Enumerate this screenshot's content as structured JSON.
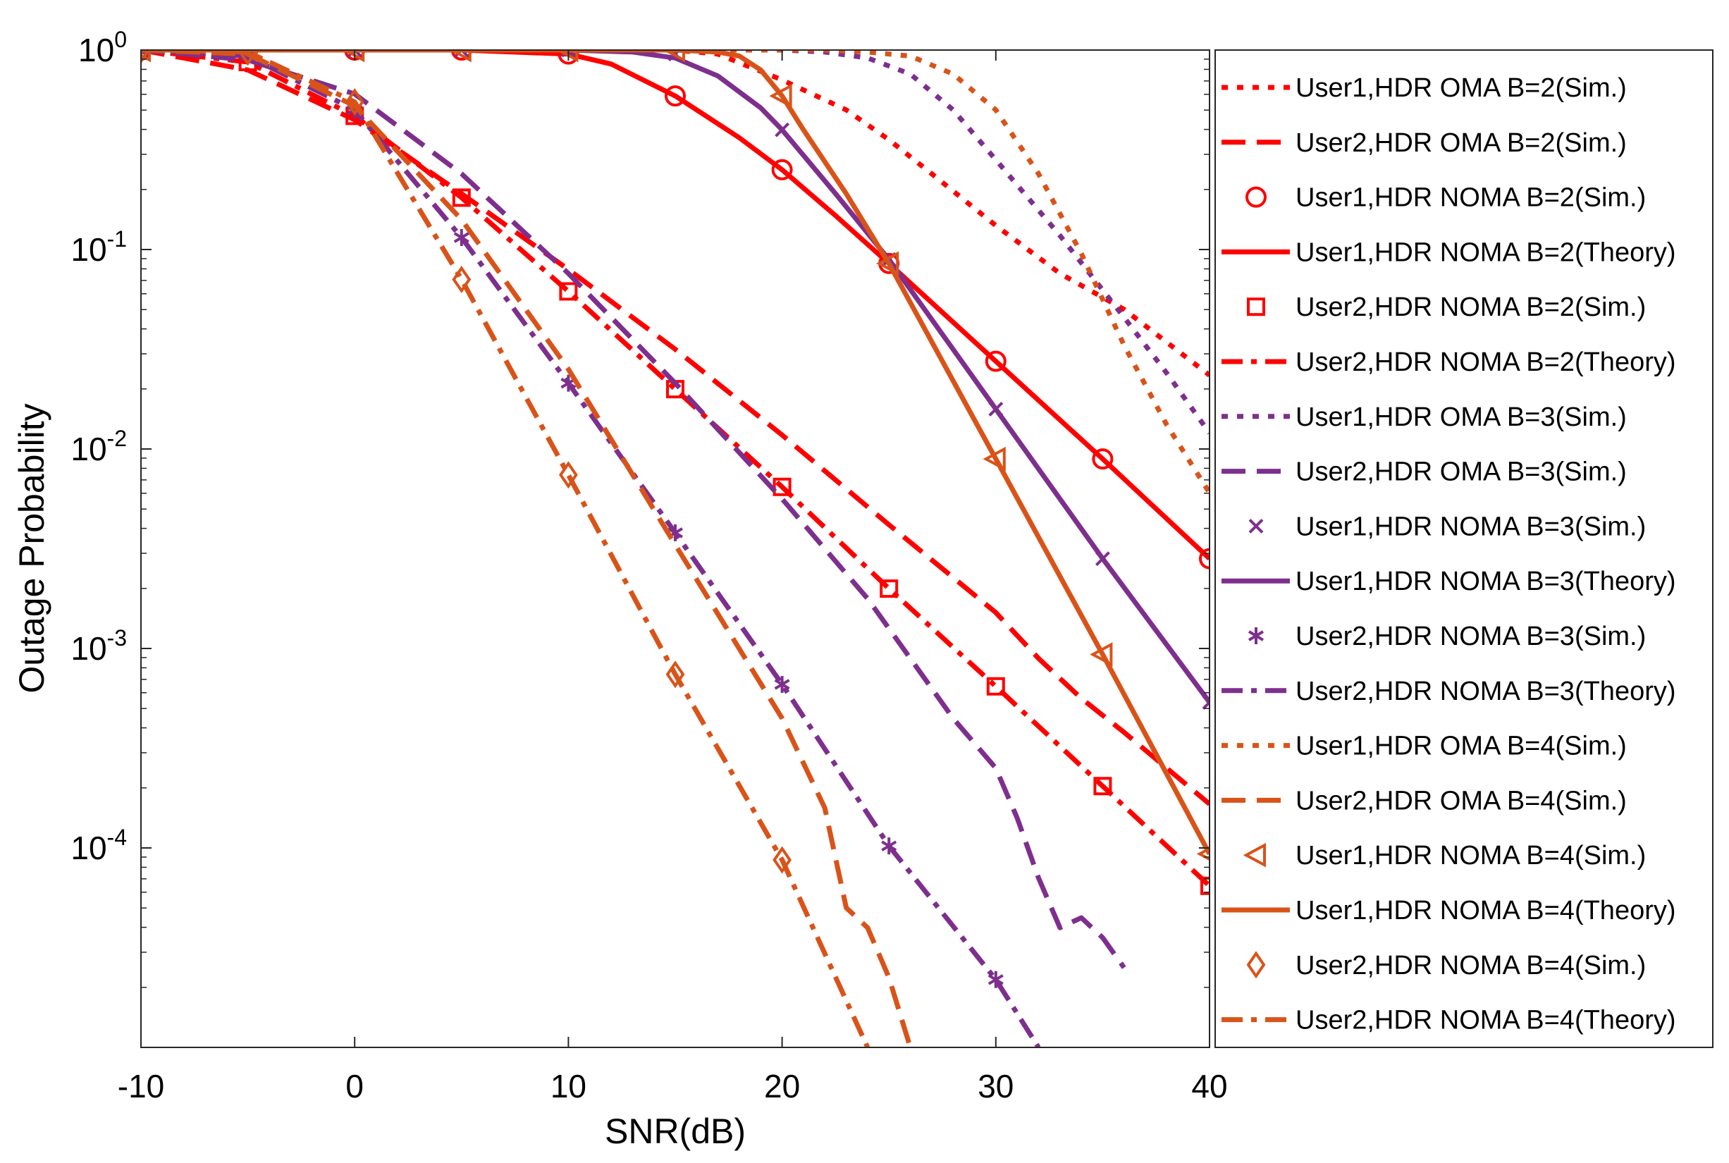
{
  "chart_data": {
    "type": "line",
    "title": "",
    "xlabel": "SNR(dB)",
    "ylabel": "Outage Probability",
    "xlim": [
      -10,
      40
    ],
    "ylim_log10": [
      -5,
      0
    ],
    "xscale": "linear",
    "yscale": "log",
    "grid": false,
    "legend_position": "outside-right",
    "x_ticks": [
      {
        "value": -10,
        "label": "-10"
      },
      {
        "value": 0,
        "label": "0"
      },
      {
        "value": 10,
        "label": "10"
      },
      {
        "value": 20,
        "label": "20"
      },
      {
        "value": 30,
        "label": "30"
      },
      {
        "value": 40,
        "label": "40"
      }
    ],
    "y_ticks": [
      {
        "exp": 0,
        "base": "10",
        "sup": "0"
      },
      {
        "exp": -1,
        "base": "10",
        "sup": "-1"
      },
      {
        "exp": -2,
        "base": "10",
        "sup": "-2"
      },
      {
        "exp": -3,
        "base": "10",
        "sup": "-3"
      },
      {
        "exp": -4,
        "base": "10",
        "sup": "-4"
      }
    ],
    "colors": {
      "B2": "#ff0000",
      "B3": "#7e2f8e",
      "B4": "#d95319"
    },
    "series": [
      {
        "name": "User1,HDR OMA B=2(Sim.)",
        "color": "#ff0000",
        "line": "dotted",
        "marker": "none",
        "x": [
          -10,
          15,
          17,
          20,
          23,
          25,
          27,
          30,
          33,
          36,
          40
        ],
        "logy": [
          0,
          0,
          -0.02,
          -0.15,
          -0.3,
          -0.45,
          -0.62,
          -0.88,
          -1.12,
          -1.3,
          -1.63
        ]
      },
      {
        "name": "User2,HDR OMA B=2(Sim.)",
        "color": "#ff0000",
        "line": "dashed",
        "marker": "none",
        "x": [
          -10,
          -5,
          0,
          5,
          10,
          15,
          20,
          25,
          30,
          32,
          34,
          36,
          40
        ],
        "logy": [
          0,
          -0.1,
          -0.35,
          -0.72,
          -1.1,
          -1.5,
          -1.93,
          -2.38,
          -2.82,
          -3.05,
          -3.25,
          -3.42,
          -3.78
        ]
      },
      {
        "name": "User1,HDR NOMA B=2(Sim.)",
        "color": "#ff0000",
        "line": "none",
        "marker": "circle",
        "x": [
          -10,
          -5,
          0,
          5,
          10,
          15,
          20,
          25,
          30,
          35,
          40
        ],
        "logy": [
          0,
          0,
          0,
          0,
          -0.02,
          -0.23,
          -0.6,
          -1.07,
          -1.56,
          -2.05,
          -2.55
        ]
      },
      {
        "name": "User1,HDR NOMA B=2(Theory)",
        "color": "#ff0000",
        "line": "solid",
        "marker": "none",
        "x": [
          -10,
          5,
          10,
          12,
          15,
          18,
          20,
          22.5,
          25,
          30,
          35,
          40
        ],
        "logy": [
          0,
          0,
          -0.02,
          -0.07,
          -0.23,
          -0.44,
          -0.6,
          -0.83,
          -1.07,
          -1.56,
          -2.05,
          -2.55
        ]
      },
      {
        "name": "User2,HDR NOMA B=2(Sim.)",
        "color": "#ff0000",
        "line": "none",
        "marker": "square",
        "x": [
          -10,
          -5,
          0,
          5,
          10,
          15,
          20,
          25,
          30,
          35,
          40
        ],
        "logy": [
          0,
          -0.06,
          -0.33,
          -0.74,
          -1.21,
          -1.7,
          -2.19,
          -2.7,
          -3.19,
          -3.69,
          -4.19
        ]
      },
      {
        "name": "User2,HDR NOMA B=2(Theory)",
        "color": "#ff0000",
        "line": "dashdot",
        "marker": "none",
        "x": [
          -10,
          -5,
          0,
          5,
          10,
          15,
          20,
          25,
          30,
          35,
          40
        ],
        "logy": [
          0,
          -0.06,
          -0.33,
          -0.74,
          -1.21,
          -1.7,
          -2.19,
          -2.7,
          -3.19,
          -3.69,
          -4.19
        ]
      },
      {
        "name": "User1,HDR OMA B=3(Sim.)",
        "color": "#7e2f8e",
        "line": "dotted",
        "marker": "none",
        "x": [
          -10,
          20,
          22,
          24,
          26,
          28,
          30,
          33,
          36,
          38,
          40
        ],
        "logy": [
          0,
          0,
          -0.01,
          -0.04,
          -0.12,
          -0.3,
          -0.55,
          -0.93,
          -1.34,
          -1.62,
          -1.92
        ]
      },
      {
        "name": "User2,HDR OMA B=3(Sim.)",
        "color": "#7e2f8e",
        "line": "dashed",
        "marker": "none",
        "x": [
          -10,
          -5,
          0,
          5,
          10,
          15,
          20,
          22,
          24,
          25,
          26,
          28,
          30,
          31,
          32,
          33,
          34,
          35,
          36
        ],
        "logy": [
          0,
          -0.05,
          -0.22,
          -0.62,
          -1.12,
          -1.67,
          -2.25,
          -2.5,
          -2.75,
          -2.9,
          -3.05,
          -3.35,
          -3.6,
          -3.85,
          -4.15,
          -4.4,
          -4.35,
          -4.45,
          -4.6
        ]
      },
      {
        "name": "User1,HDR NOMA B=3(Sim.)",
        "color": "#7e2f8e",
        "line": "none",
        "marker": "x",
        "x": [
          -10,
          -5,
          0,
          5,
          10,
          15,
          20,
          25,
          30,
          35,
          40
        ],
        "logy": [
          0,
          0,
          0,
          0,
          0,
          -0.02,
          -0.4,
          -1.05,
          -1.8,
          -2.55,
          -3.27
        ]
      },
      {
        "name": "User1,HDR NOMA B=3(Theory)",
        "color": "#7e2f8e",
        "line": "solid",
        "marker": "none",
        "x": [
          -10,
          10,
          13,
          15,
          17,
          19,
          20,
          22.5,
          25,
          30,
          35,
          40
        ],
        "logy": [
          0,
          0,
          -0.01,
          -0.04,
          -0.13,
          -0.29,
          -0.4,
          -0.72,
          -1.05,
          -1.8,
          -2.55,
          -3.27
        ]
      },
      {
        "name": "User2,HDR NOMA B=3(Sim.)",
        "color": "#7e2f8e",
        "line": "none",
        "marker": "asterisk",
        "x": [
          -10,
          -5,
          0,
          5,
          10,
          15,
          20,
          25,
          30
        ],
        "logy": [
          0,
          -0.03,
          -0.3,
          -0.94,
          -1.67,
          -2.42,
          -3.18,
          -3.99,
          -4.66
        ]
      },
      {
        "name": "User2,HDR NOMA B=3(Theory)",
        "color": "#7e2f8e",
        "line": "dashdot",
        "marker": "none",
        "x": [
          -10,
          -5,
          0,
          5,
          10,
          15,
          20,
          25,
          30,
          32
        ],
        "logy": [
          0,
          -0.03,
          -0.3,
          -0.94,
          -1.67,
          -2.42,
          -3.18,
          -3.99,
          -4.66,
          -5.0
        ]
      },
      {
        "name": "User1,HDR OMA B=4(Sim.)",
        "color": "#d95319",
        "line": "dotted",
        "marker": "none",
        "x": [
          -10,
          22,
          24,
          26,
          28,
          30,
          32,
          34,
          36,
          38,
          40
        ],
        "logy": [
          0,
          0,
          -0.01,
          -0.03,
          -0.12,
          -0.3,
          -0.62,
          -1.02,
          -1.48,
          -1.88,
          -2.22
        ]
      },
      {
        "name": "User2,HDR OMA B=4(Sim.)",
        "color": "#d95319",
        "line": "dashed",
        "marker": "none",
        "x": [
          -10,
          -5,
          0,
          5,
          10,
          15,
          20,
          22,
          23,
          24,
          25,
          26
        ],
        "logy": [
          0,
          -0.02,
          -0.28,
          -0.85,
          -1.6,
          -2.48,
          -3.35,
          -3.8,
          -4.3,
          -4.4,
          -4.65,
          -5.0
        ]
      },
      {
        "name": "User1,HDR NOMA B=4(Sim.)",
        "color": "#d95319",
        "line": "none",
        "marker": "triangle-left",
        "x": [
          -10,
          -5,
          0,
          5,
          10,
          15,
          20,
          25,
          30,
          35,
          40
        ],
        "logy": [
          0,
          0,
          0,
          0,
          0,
          0,
          -0.23,
          -1.07,
          -2.05,
          -3.03,
          -4.03
        ]
      },
      {
        "name": "User1,HDR NOMA B=4(Theory)",
        "color": "#d95319",
        "line": "solid",
        "marker": "none",
        "x": [
          -10,
          15,
          17,
          18,
          19,
          20,
          21,
          23,
          25,
          30,
          35,
          38,
          40
        ],
        "logy": [
          0,
          0,
          -0.01,
          -0.03,
          -0.1,
          -0.23,
          -0.4,
          -0.72,
          -1.07,
          -2.05,
          -3.03,
          -3.63,
          -4.03
        ]
      },
      {
        "name": "User2,HDR NOMA B=4(Sim.)",
        "color": "#d95319",
        "line": "none",
        "marker": "diamond",
        "x": [
          -10,
          -5,
          0,
          5,
          10,
          15,
          20
        ],
        "logy": [
          0,
          -0.01,
          -0.26,
          -1.15,
          -2.13,
          -3.13,
          -4.06
        ]
      },
      {
        "name": "User2,HDR NOMA B=4(Theory)",
        "color": "#d95319",
        "line": "dashdot",
        "marker": "none",
        "x": [
          -10,
          -5,
          0,
          5,
          10,
          15,
          20,
          24
        ],
        "logy": [
          0,
          -0.01,
          -0.26,
          -1.15,
          -2.13,
          -3.13,
          -4.06,
          -5.0
        ]
      }
    ]
  }
}
